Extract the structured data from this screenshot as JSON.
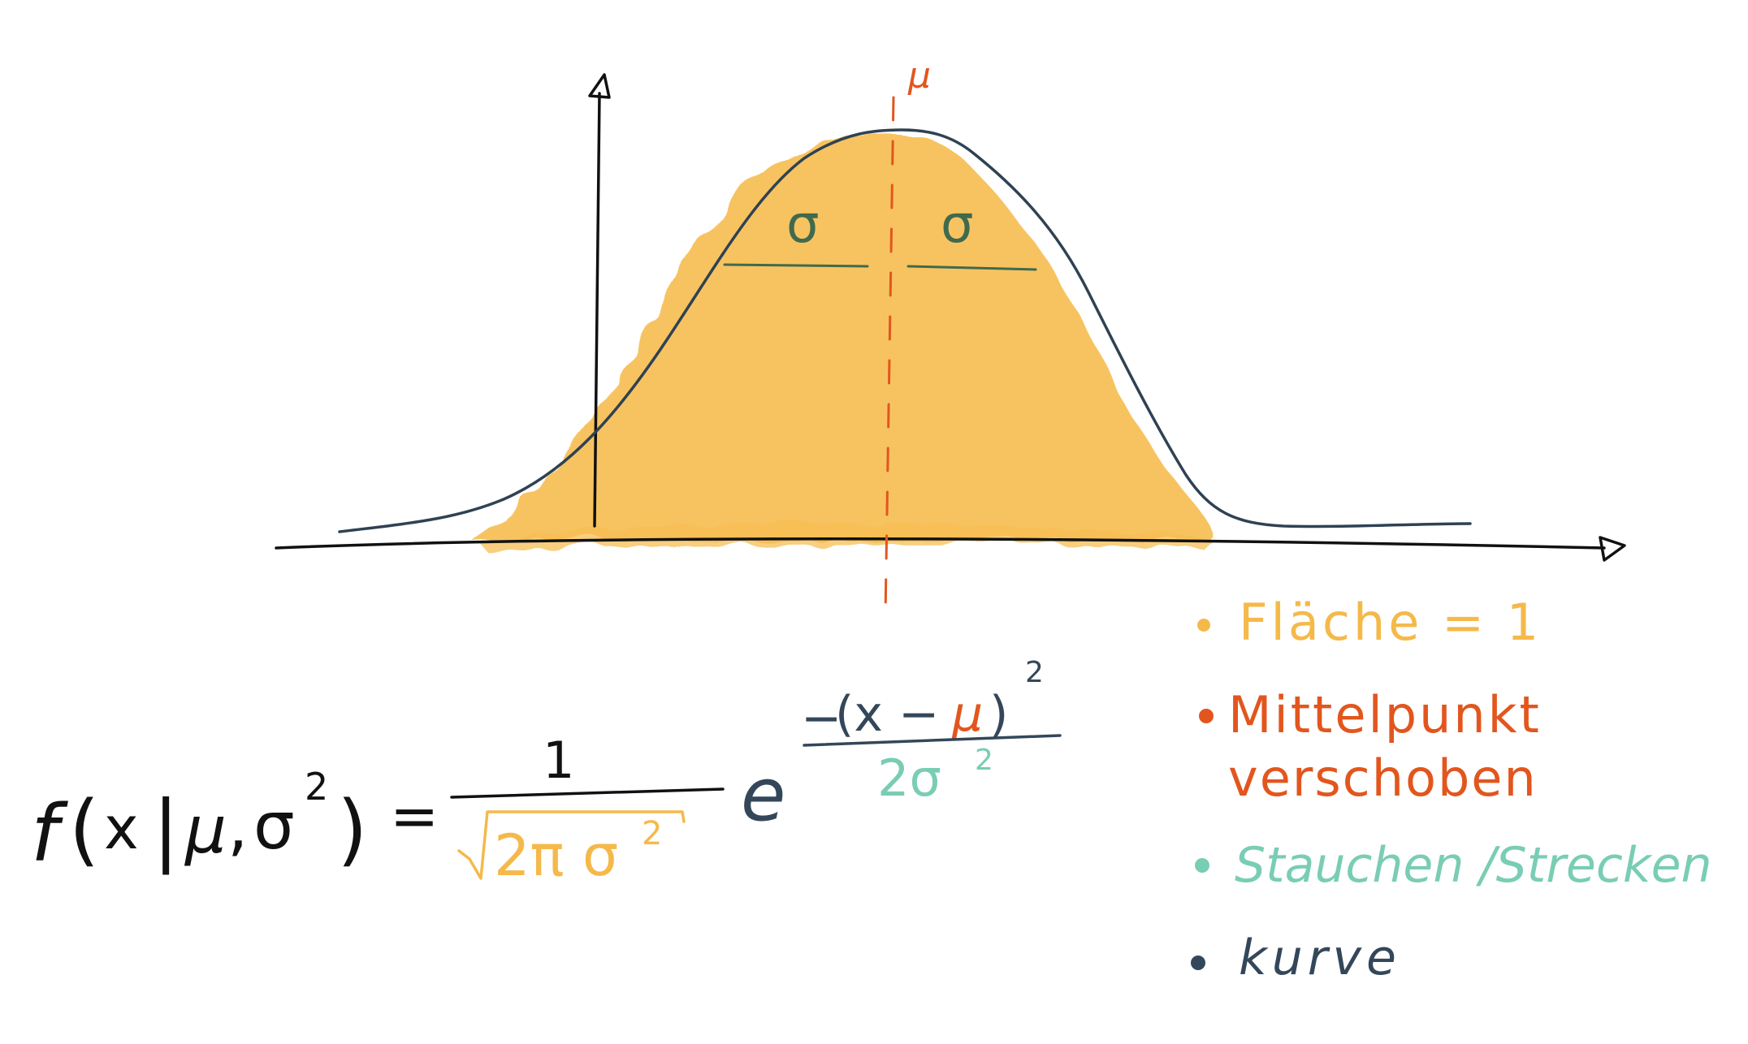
{
  "diagram": {
    "mu_label": "μ",
    "sigma_left": "σ",
    "sigma_right": "σ"
  },
  "formula": {
    "lhs_f": "f",
    "lhs_open": "(",
    "lhs_x": "x",
    "lhs_bar": "|",
    "lhs_mu": "μ",
    "lhs_comma": ",",
    "lhs_sigma": "σ",
    "lhs_sq": "2",
    "lhs_close": ")",
    "equals": "=",
    "frac_numerator": "1",
    "sqrt_symbol": "√",
    "sqrt_content": "2π σ",
    "sqrt_sq": "2",
    "e": "e",
    "exp_minus": "−",
    "exp_open": "(x −",
    "exp_mu": "μ",
    "exp_close": ")",
    "exp_sq": "2",
    "exp_denominator": "2σ",
    "exp_den_sq": "2"
  },
  "legend": {
    "items": [
      {
        "text": "Fläche = 1",
        "color": "#F5B94A"
      },
      {
        "text": "Mittelpunkt",
        "text2": "verschoben",
        "color": "#E2561E"
      },
      {
        "text": "Stauchen /Strecken",
        "color": "#79CDB4"
      },
      {
        "text": "kurve",
        "color": "#34475A"
      }
    ]
  },
  "colors": {
    "fill": "#F7BE52",
    "curve": "#2F4253",
    "axis": "#111111",
    "mu_line": "#E2561E",
    "sigma": "#3F6A4E",
    "teal": "#79CDB4",
    "orange_text": "#F5B94A"
  }
}
